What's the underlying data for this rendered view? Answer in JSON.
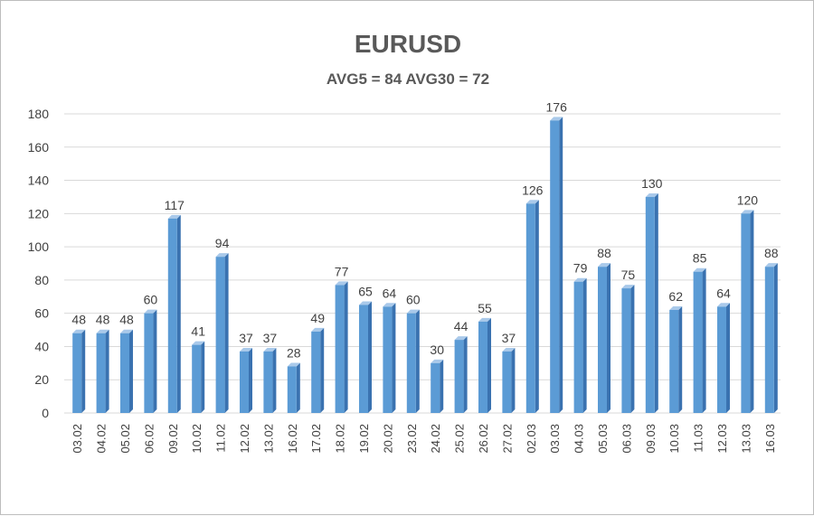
{
  "chart_data": {
    "type": "bar",
    "title": "EURUSD",
    "subtitle": "AVG5 = 84 AVG30 = 72",
    "categories": [
      "03.02",
      "04.02",
      "05.02",
      "06.02",
      "09.02",
      "10.02",
      "11.02",
      "12.02",
      "13.02",
      "16.02",
      "17.02",
      "18.02",
      "19.02",
      "20.02",
      "23.02",
      "24.02",
      "25.02",
      "26.02",
      "27.02",
      "02.03",
      "03.03",
      "04.03",
      "05.03",
      "06.03",
      "09.03",
      "10.03",
      "11.03",
      "12.03",
      "13.03",
      "16.03"
    ],
    "values": [
      48,
      48,
      48,
      60,
      117,
      41,
      94,
      37,
      37,
      28,
      49,
      77,
      65,
      64,
      60,
      30,
      44,
      55,
      37,
      126,
      176,
      79,
      88,
      75,
      130,
      62,
      85,
      64,
      120,
      88
    ],
    "yticks": [
      0,
      20,
      40,
      60,
      80,
      100,
      120,
      140,
      160,
      180
    ],
    "ylim": [
      0,
      180
    ],
    "grid": true,
    "legend": "none",
    "colors": {
      "bar": "#5b9bd5",
      "bar_side": "#3a72b0",
      "bar_top": "#a9c9ea",
      "grid": "#d9d9d9",
      "text": "#404040",
      "title": "#595959"
    }
  }
}
